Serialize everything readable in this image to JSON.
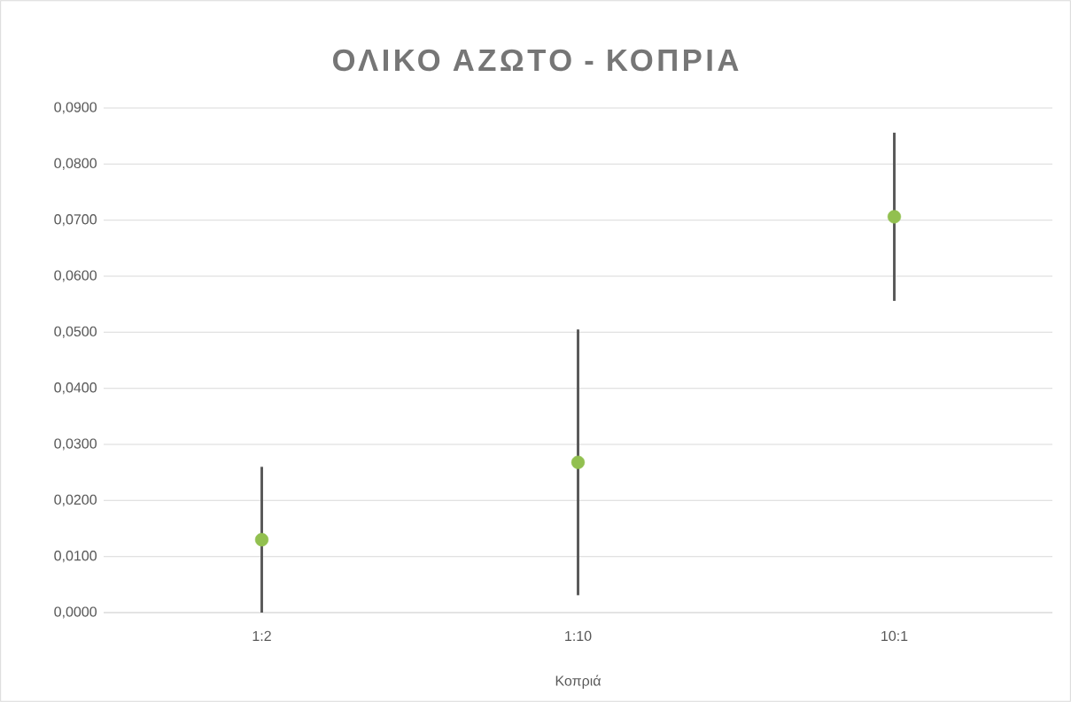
{
  "chart_data": {
    "type": "scatter",
    "title": "ΟΛΙΚΟ ΑΖΩΤΟ - ΚΟΠΡΙΑ",
    "xlabel": "Κοπριά",
    "categories": [
      "1:2",
      "1:10",
      "10:1"
    ],
    "values": [
      0.013,
      0.0268,
      0.0706
    ],
    "errors": [
      0.013,
      0.0237,
      0.015
    ],
    "color": "#92c050",
    "grid": "y",
    "ylim": [
      0,
      0.09
    ],
    "yticks": [
      {
        "value": 0,
        "label": "0,0000"
      },
      {
        "value": 0.01,
        "label": "0,0100"
      },
      {
        "value": 0.02,
        "label": "0,0200"
      },
      {
        "value": 0.03,
        "label": "0,0300"
      },
      {
        "value": 0.04,
        "label": "0,0400"
      },
      {
        "value": 0.05,
        "label": "0,0500"
      },
      {
        "value": 0.06,
        "label": "0,0600"
      },
      {
        "value": 0.07,
        "label": "0,0700"
      },
      {
        "value": 0.08,
        "label": "0,0800"
      },
      {
        "value": 0.09,
        "label": "0,0900"
      }
    ]
  }
}
